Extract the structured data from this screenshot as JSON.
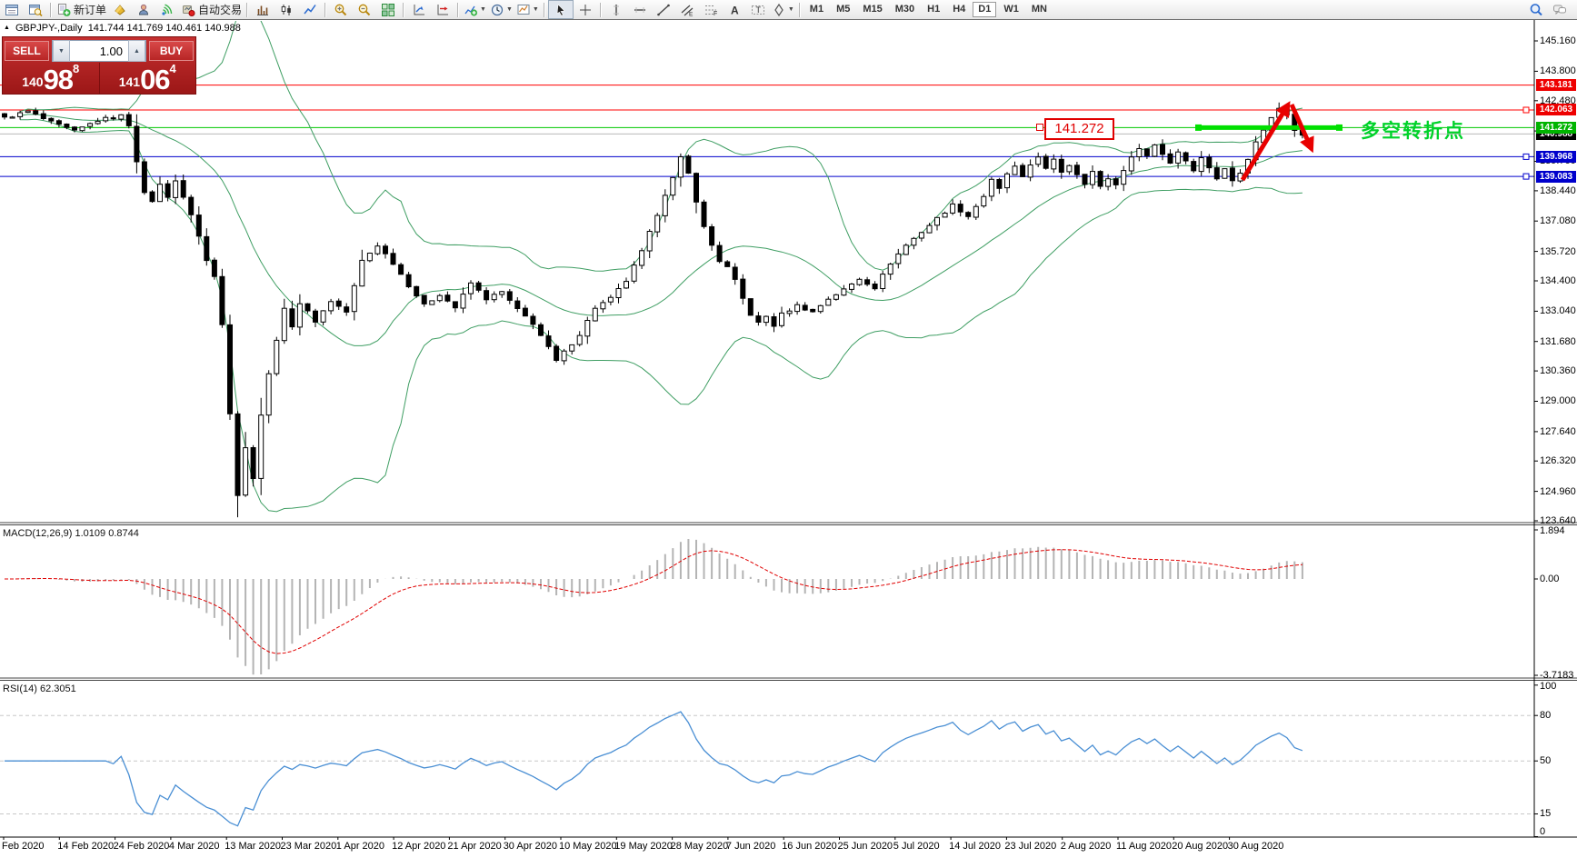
{
  "toolbar": {
    "groups": [
      {
        "items": [
          {
            "name": "charts-list",
            "icon": "win"
          },
          {
            "name": "data-window",
            "icon": "winmag"
          }
        ]
      },
      {
        "items": [
          {
            "name": "new-order",
            "icon": "neworder",
            "label": "新订单"
          },
          {
            "name": "metaeditor",
            "icon": "bucket"
          },
          {
            "name": "profile",
            "icon": "person"
          },
          {
            "name": "signals",
            "icon": "signal"
          },
          {
            "name": "autotrading",
            "icon": "autotrade",
            "label": "自动交易"
          }
        ]
      },
      {
        "items": [
          {
            "name": "bar-chart-mode",
            "icon": "bars"
          },
          {
            "name": "candle-chart-mode",
            "icon": "candles"
          },
          {
            "name": "line-chart-mode",
            "icon": "linechart"
          }
        ]
      },
      {
        "items": [
          {
            "name": "zoom-in",
            "icon": "zoomin"
          },
          {
            "name": "zoom-out",
            "icon": "zoomout"
          },
          {
            "name": "tile-windows",
            "icon": "tile"
          }
        ]
      },
      {
        "items": [
          {
            "name": "auto-scroll",
            "icon": "axisarrow"
          },
          {
            "name": "chart-shift",
            "icon": "axisarrow2"
          }
        ]
      },
      {
        "items": [
          {
            "name": "indicators",
            "icon": "indplus",
            "caret": true
          },
          {
            "name": "periods",
            "icon": "clock",
            "caret": true
          },
          {
            "name": "templates",
            "icon": "tmpl",
            "caret": true
          }
        ]
      },
      {
        "items": [
          {
            "name": "cursor",
            "icon": "cursor",
            "active": true
          },
          {
            "name": "crosshair",
            "icon": "cross"
          }
        ]
      },
      {
        "items": [
          {
            "name": "vertical-line",
            "icon": "vline"
          },
          {
            "name": "horizontal-line",
            "icon": "hline"
          },
          {
            "name": "trendline",
            "icon": "trend"
          },
          {
            "name": "equidistant-channel",
            "icon": "channel"
          },
          {
            "name": "fibonacci",
            "icon": "fibo"
          },
          {
            "name": "text",
            "icon": "textA"
          },
          {
            "name": "text-label",
            "icon": "labelT"
          },
          {
            "name": "arrows",
            "icon": "shapes",
            "caret": true
          }
        ]
      }
    ],
    "timeframes": [
      {
        "label": "M1"
      },
      {
        "label": "M5"
      },
      {
        "label": "M15"
      },
      {
        "label": "M30"
      },
      {
        "label": "H1"
      },
      {
        "label": "H4"
      },
      {
        "label": "D1",
        "active": true
      },
      {
        "label": "W1"
      },
      {
        "label": "MN"
      }
    ],
    "right_items": [
      {
        "name": "search",
        "icon": "search"
      },
      {
        "name": "chat",
        "icon": "chat"
      }
    ]
  },
  "chart": {
    "title_marker": "▲",
    "symbol": "GBPJPY-,Daily",
    "ohlc": "141.744 141.769 140.461 140.988"
  },
  "trade_panel": {
    "sell_label": "SELL",
    "buy_label": "BUY",
    "volume": "1.00",
    "spin_down": "▼",
    "spin_up": "▲",
    "sell_price_prefix": "140",
    "sell_price_main": "98",
    "sell_price_sup": "8",
    "buy_price_prefix": "141",
    "buy_price_main": "06",
    "buy_price_sup": "4"
  },
  "price_axis": {
    "ticks": [
      "145.160",
      "143.800",
      "142.480",
      "141.120",
      "139.760",
      "138.440",
      "137.080",
      "135.720",
      "134.400",
      "133.040",
      "131.680",
      "130.360",
      "129.000",
      "127.640",
      "126.320",
      "124.960",
      "123.640"
    ]
  },
  "levels": [
    {
      "price": 143.181,
      "text": "143.181",
      "line_color": "#ff0000",
      "badge_bg": "#ee0000",
      "marker": false
    },
    {
      "price": 142.063,
      "text": "142.063",
      "line_color": "#ff0000",
      "badge_bg": "#ee0000",
      "marker": true
    },
    {
      "price": 139.968,
      "text": "139.968",
      "line_color": "#0000cc",
      "badge_bg": "#0000cc",
      "marker": true
    },
    {
      "price": 139.083,
      "text": "139.083",
      "line_color": "#0000cc",
      "badge_bg": "#0000cc",
      "marker": true
    },
    {
      "price": 140.988,
      "text": "140.988",
      "line_color": "#b8b8b8",
      "badge_bg": "#000000",
      "marker": false
    },
    {
      "price": 141.272,
      "text": "141.272",
      "line_color": "#00c800",
      "badge_bg": "#00b400",
      "marker": false
    }
  ],
  "annotations": {
    "price_label": "141.272",
    "note_text": "多空转折点",
    "note_color": "#00d22a",
    "trend_segment_color": "#00e000",
    "arrow_color": "#e80000"
  },
  "indicators": {
    "bollinger": {
      "name": "Bollinger Bands(20,2)",
      "color": "#3f9e63"
    },
    "macd": {
      "label": "MACD(12,26,9)",
      "value_main": "1.0109",
      "value_signal": "0.8744",
      "axis_ticks": [
        1.894,
        0.0,
        -3.7183
      ],
      "axis_texts": [
        "1.894",
        "0.00",
        "-3.7183"
      ],
      "histogram_color": "#b4b4b4",
      "signal_color": "#e00000"
    },
    "rsi": {
      "label": "RSI(14)",
      "value": "62.3051",
      "axis_ticks": [
        100,
        80,
        50,
        15,
        0
      ],
      "axis_texts": [
        "100",
        "80",
        "50",
        "15",
        "0"
      ],
      "levels": [
        80,
        50,
        15
      ],
      "line_color": "#4a8fd4"
    }
  },
  "date_axis": {
    "labels": [
      "Feb 2020",
      "14 Feb 2020",
      "24 Feb 2020",
      "4 Mar 2020",
      "13 Mar 2020",
      "23 Mar 2020",
      "1 Apr 2020",
      "12 Apr 2020",
      "21 Apr 2020",
      "30 Apr 2020",
      "10 May 2020",
      "19 May 2020",
      "28 May 2020",
      "7 Jun 2020",
      "16 Jun 2020",
      "25 Jun 2020",
      "5 Jul 2020",
      "14 Jul 2020",
      "23 Jul 2020",
      "2 Aug 2020",
      "11 Aug 2020",
      "20 Aug 2020",
      "30 Aug 2020"
    ]
  },
  "chart_data": {
    "type": "candlestick",
    "symbol": "GBPJPY",
    "timeframe": "Daily",
    "visible_price_range": [
      123.64,
      145.16
    ],
    "candle_count": 168,
    "close_keyframes": [
      [
        0,
        141.7
      ],
      [
        3,
        142.0
      ],
      [
        6,
        141.5
      ],
      [
        9,
        141.1
      ],
      [
        12,
        141.6
      ],
      [
        15,
        141.8
      ],
      [
        16,
        141.4
      ],
      [
        17,
        139.8
      ],
      [
        18,
        138.3
      ],
      [
        19,
        138.0
      ],
      [
        20,
        138.7
      ],
      [
        21,
        138.2
      ],
      [
        22,
        138.9
      ],
      [
        23,
        138.1
      ],
      [
        24,
        137.4
      ],
      [
        25,
        136.4
      ],
      [
        26,
        135.3
      ],
      [
        27,
        134.6
      ],
      [
        28,
        132.5
      ],
      [
        29,
        128.5
      ],
      [
        30,
        124.8
      ],
      [
        31,
        126.9
      ],
      [
        32,
        125.6
      ],
      [
        33,
        128.4
      ],
      [
        34,
        130.2
      ],
      [
        35,
        131.8
      ],
      [
        36,
        133.1
      ],
      [
        37,
        132.4
      ],
      [
        38,
        133.4
      ],
      [
        40,
        132.6
      ],
      [
        42,
        133.5
      ],
      [
        44,
        133.0
      ],
      [
        46,
        135.3
      ],
      [
        48,
        136.0
      ],
      [
        50,
        135.2
      ],
      [
        52,
        134.2
      ],
      [
        54,
        133.3
      ],
      [
        56,
        133.8
      ],
      [
        58,
        133.2
      ],
      [
        60,
        134.3
      ],
      [
        62,
        133.6
      ],
      [
        64,
        133.9
      ],
      [
        66,
        133.1
      ],
      [
        68,
        132.5
      ],
      [
        70,
        131.4
      ],
      [
        71,
        130.8
      ],
      [
        72,
        131.2
      ],
      [
        74,
        132.0
      ],
      [
        76,
        133.2
      ],
      [
        78,
        133.6
      ],
      [
        80,
        134.4
      ],
      [
        82,
        135.7
      ],
      [
        84,
        137.4
      ],
      [
        85,
        138.3
      ],
      [
        86,
        139.0
      ],
      [
        87,
        139.9
      ],
      [
        88,
        139.2
      ],
      [
        89,
        138.0
      ],
      [
        90,
        136.8
      ],
      [
        91,
        136.0
      ],
      [
        92,
        135.3
      ],
      [
        93,
        135.0
      ],
      [
        94,
        134.4
      ],
      [
        95,
        133.6
      ],
      [
        96,
        132.9
      ],
      [
        97,
        132.5
      ],
      [
        98,
        132.8
      ],
      [
        99,
        132.4
      ],
      [
        100,
        132.9
      ],
      [
        102,
        133.3
      ],
      [
        104,
        133.0
      ],
      [
        106,
        133.6
      ],
      [
        108,
        134.0
      ],
      [
        110,
        134.5
      ],
      [
        112,
        134.1
      ],
      [
        114,
        135.2
      ],
      [
        116,
        136.0
      ],
      [
        118,
        136.6
      ],
      [
        120,
        137.2
      ],
      [
        122,
        137.8
      ],
      [
        124,
        137.3
      ],
      [
        126,
        138.2
      ],
      [
        127,
        138.9
      ],
      [
        128,
        138.5
      ],
      [
        129,
        139.2
      ],
      [
        130,
        139.5
      ],
      [
        131,
        139.0
      ],
      [
        132,
        139.6
      ],
      [
        133,
        140.0
      ],
      [
        134,
        139.4
      ],
      [
        135,
        139.8
      ],
      [
        136,
        139.3
      ],
      [
        137,
        139.6
      ],
      [
        138,
        139.2
      ],
      [
        139,
        138.8
      ],
      [
        140,
        139.3
      ],
      [
        141,
        138.6
      ],
      [
        142,
        139.0
      ],
      [
        143,
        138.7
      ],
      [
        144,
        139.4
      ],
      [
        145,
        139.9
      ],
      [
        146,
        140.4
      ],
      [
        147,
        140.0
      ],
      [
        148,
        140.5
      ],
      [
        149,
        140.1
      ],
      [
        150,
        139.7
      ],
      [
        151,
        140.2
      ],
      [
        152,
        139.8
      ],
      [
        153,
        139.4
      ],
      [
        154,
        139.9
      ],
      [
        155,
        139.5
      ],
      [
        156,
        139.0
      ],
      [
        157,
        139.4
      ],
      [
        158,
        138.9
      ],
      [
        159,
        139.3
      ],
      [
        160,
        139.9
      ],
      [
        161,
        140.6
      ],
      [
        162,
        141.2
      ],
      [
        163,
        141.7
      ],
      [
        164,
        142.15
      ],
      [
        165,
        141.9
      ],
      [
        166,
        141.2
      ],
      [
        167,
        140.99
      ]
    ]
  }
}
